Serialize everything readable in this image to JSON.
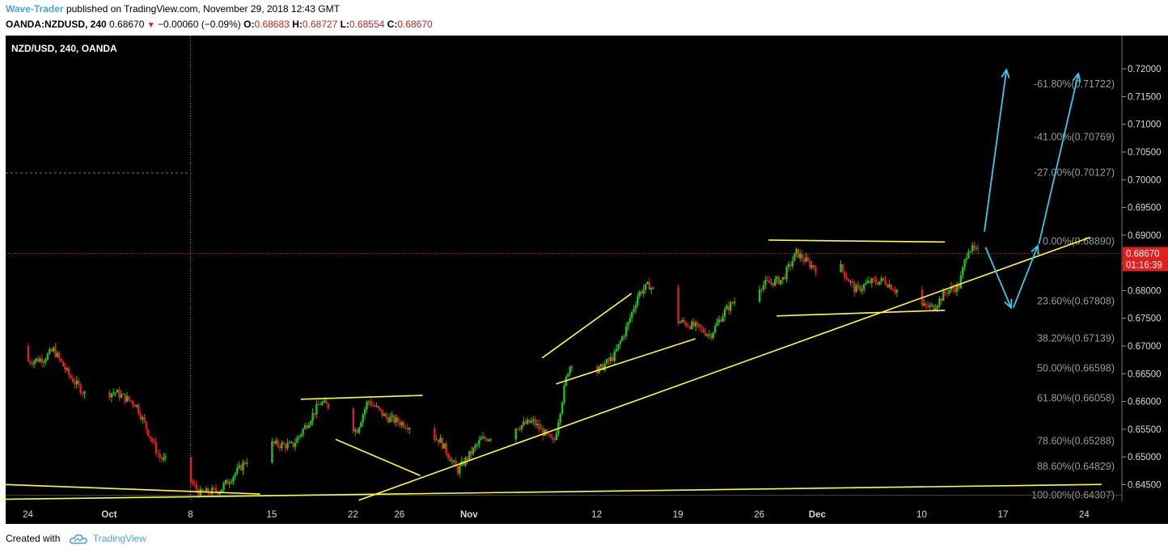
{
  "header": {
    "author": "Wave-Trader",
    "published_text": "published on TradingView.com, November 29, 2018 12:43 GMT",
    "symbol": "OANDA:NZDUSD, 240",
    "last": "0.68670",
    "change": "−0.00060 (−0.09%)",
    "o_label": "O:",
    "o_value": "0.68683",
    "h_label": "H:",
    "h_value": "0.68727",
    "l_label": "L:",
    "l_value": "0.68554",
    "c_label": "C:",
    "c_value": "0.68670"
  },
  "footer": {
    "created_with": "Created with",
    "brand": "TradingView"
  },
  "chart_data": {
    "type": "candlestick",
    "legend": "NZD/USD, 240, OANDA",
    "background": "#000000",
    "up_color": "#21c021",
    "down_color": "#e02020",
    "trendline_color": "#ffff33",
    "arrow_color": "#33ccee",
    "ylim": [
      0.642,
      0.726
    ],
    "y_ticks": [
      "0.72000",
      "0.71500",
      "0.71000",
      "0.70500",
      "0.70000",
      "0.69500",
      "0.69000",
      "0.68500",
      "0.68000",
      "0.67500",
      "0.67000",
      "0.66500",
      "0.66000",
      "0.65500",
      "0.65000",
      "0.64500"
    ],
    "x_ticks": [
      {
        "label": "24",
        "day": -7
      },
      {
        "label": "Oct",
        "day": 0
      },
      {
        "label": "8",
        "day": 7
      },
      {
        "label": "15",
        "day": 14
      },
      {
        "label": "22",
        "day": 21
      },
      {
        "label": "26",
        "day": 25
      },
      {
        "label": "Nov",
        "day": 31
      },
      {
        "label": "12",
        "day": 42
      },
      {
        "label": "19",
        "day": 49
      },
      {
        "label": "26",
        "day": 56
      },
      {
        "label": "Dec",
        "day": 61
      },
      {
        "label": "10",
        "day": 70
      },
      {
        "label": "17",
        "day": 77
      },
      {
        "label": "24",
        "day": 84
      }
    ],
    "last_price": {
      "price": 0.6867,
      "label": "0.68670",
      "countdown": "01:16:39"
    },
    "fib_levels": [
      {
        "label": "-61.80%(0.71722)",
        "price": 0.71722
      },
      {
        "label": "-41.00%(0.70769)",
        "price": 0.70769
      },
      {
        "label": "-27.00%(0.70127)",
        "price": 0.70127
      },
      {
        "label": "0.00%(0.68890)",
        "price": 0.6889
      },
      {
        "label": "23.60%(0.67808)",
        "price": 0.67808
      },
      {
        "label": "38.20%(0.67139)",
        "price": 0.67139
      },
      {
        "label": "50.00%(0.66598)",
        "price": 0.66598
      },
      {
        "label": "61.80%(0.66058)",
        "price": 0.66058
      },
      {
        "label": "78.60%(0.65288)",
        "price": 0.65288
      },
      {
        "label": "88.60%(0.64829)",
        "price": 0.64829
      },
      {
        "label": "100.00%(0.64307)",
        "price": 0.64307
      }
    ],
    "price_path": [
      {
        "day": -8.8,
        "price": 0.67
      },
      {
        "day": -7.0,
        "price": 0.6672
      },
      {
        "day": -5.6,
        "price": 0.6678
      },
      {
        "day": -4.8,
        "price": 0.6693
      },
      {
        "day": -3.5,
        "price": 0.6648
      },
      {
        "day": -1.9,
        "price": 0.6608
      },
      {
        "day": 0.5,
        "price": 0.6617
      },
      {
        "day": 2.3,
        "price": 0.6595
      },
      {
        "day": 4.3,
        "price": 0.65
      },
      {
        "day": 6.5,
        "price": 0.647
      },
      {
        "day": 7.8,
        "price": 0.6434
      },
      {
        "day": 9.5,
        "price": 0.644
      },
      {
        "day": 11.2,
        "price": 0.6478
      },
      {
        "day": 13.0,
        "price": 0.6525
      },
      {
        "day": 15.8,
        "price": 0.652
      },
      {
        "day": 18.2,
        "price": 0.6598
      },
      {
        "day": 20.0,
        "price": 0.658
      },
      {
        "day": 21.3,
        "price": 0.6546
      },
      {
        "day": 22.3,
        "price": 0.6602
      },
      {
        "day": 23.8,
        "price": 0.6572
      },
      {
        "day": 26.0,
        "price": 0.6555
      },
      {
        "day": 28.5,
        "price": 0.653
      },
      {
        "day": 30.0,
        "price": 0.6475
      },
      {
        "day": 32.0,
        "price": 0.653
      },
      {
        "day": 34.5,
        "price": 0.655
      },
      {
        "day": 36.5,
        "price": 0.6564
      },
      {
        "day": 38.3,
        "price": 0.6524
      },
      {
        "day": 39.5,
        "price": 0.6655
      },
      {
        "day": 40.3,
        "price": 0.669
      },
      {
        "day": 41.6,
        "price": 0.6645
      },
      {
        "day": 43.5,
        "price": 0.6682
      },
      {
        "day": 44.7,
        "price": 0.674
      },
      {
        "day": 45.6,
        "price": 0.6795
      },
      {
        "day": 46.5,
        "price": 0.681
      },
      {
        "day": 47.6,
        "price": 0.6785
      },
      {
        "day": 49.0,
        "price": 0.6745
      },
      {
        "day": 50.5,
        "price": 0.6735
      },
      {
        "day": 51.8,
        "price": 0.672
      },
      {
        "day": 53.0,
        "price": 0.6762
      },
      {
        "day": 54.5,
        "price": 0.6795
      },
      {
        "day": 56.5,
        "price": 0.6812
      },
      {
        "day": 58.0,
        "price": 0.682
      },
      {
        "day": 59.2,
        "price": 0.6868
      },
      {
        "day": 60.3,
        "price": 0.6848
      },
      {
        "day": 61.6,
        "price": 0.6832
      },
      {
        "day": 63.0,
        "price": 0.6842
      },
      {
        "day": 64.3,
        "price": 0.68
      },
      {
        "day": 65.5,
        "price": 0.6815
      },
      {
        "day": 66.8,
        "price": 0.6818
      },
      {
        "day": 67.8,
        "price": 0.68
      },
      {
        "day": 68.8,
        "price": 0.6818
      },
      {
        "day": 69.8,
        "price": 0.6772
      },
      {
        "day": 71.0,
        "price": 0.677
      },
      {
        "day": 72.2,
        "price": 0.68
      },
      {
        "day": 73.2,
        "price": 0.6808
      },
      {
        "day": 74.0,
        "price": 0.6878
      },
      {
        "day": 75.0,
        "price": 0.6867
      }
    ],
    "trendlines": [
      {
        "from": [
          -9.2,
          0.64504
        ],
        "to": [
          13.0,
          0.64331
        ]
      },
      {
        "from": [
          -9.2,
          0.64235
        ],
        "to": [
          85.5,
          0.64504
        ]
      },
      {
        "from": [
          21.5,
          0.64218
        ],
        "to": [
          84.5,
          0.6896
        ]
      },
      {
        "from": [
          16.5,
          0.6604
        ],
        "to": [
          27.0,
          0.6611
        ]
      },
      {
        "from": [
          19.5,
          0.65317
        ],
        "to": [
          26.8,
          0.64663
        ]
      },
      {
        "from": [
          37.3,
          0.66786
        ],
        "to": [
          45.0,
          0.67949
        ]
      },
      {
        "from": [
          38.5,
          0.66316
        ],
        "to": [
          50.5,
          0.67131
        ]
      },
      {
        "from": [
          56.8,
          0.68911
        ],
        "to": [
          72.0,
          0.68876
        ]
      },
      {
        "from": [
          57.5,
          0.67543
        ],
        "to": [
          72.0,
          0.67645
        ]
      }
    ],
    "arrows": [
      {
        "from": [
          75.4,
          0.69061
        ],
        "to": [
          77.3,
          0.71983
        ]
      },
      {
        "from": [
          75.5,
          0.68781
        ],
        "to": [
          77.7,
          0.67692
        ]
      },
      {
        "from": [
          77.9,
          0.67692
        ],
        "to": [
          80.0,
          0.68807
        ]
      },
      {
        "from": [
          80.1,
          0.68842
        ],
        "to": [
          83.5,
          0.71913
        ]
      }
    ],
    "crosshair": {
      "day": 7.0
    }
  }
}
